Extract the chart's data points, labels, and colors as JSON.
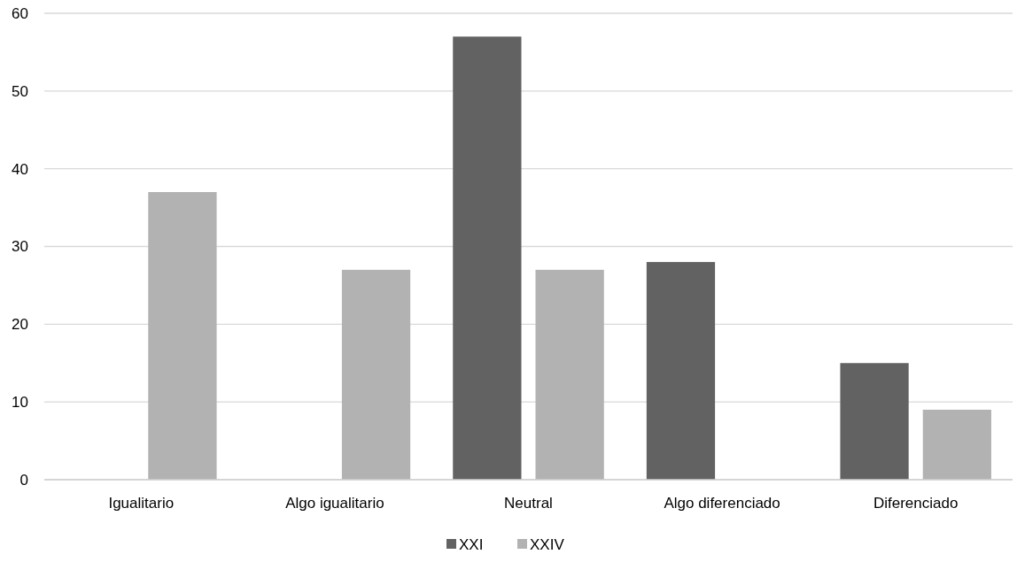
{
  "chart_data": {
    "type": "bar",
    "categories": [
      "Igualitario",
      "Algo igualitario",
      "Neutral",
      "Algo diferenciado",
      "Diferenciado"
    ],
    "series": [
      {
        "name": "XXI",
        "color": "#626262",
        "values": [
          0,
          0,
          57,
          28,
          15
        ]
      },
      {
        "name": "XXIV",
        "color": "#b2b2b2",
        "values": [
          37,
          27,
          27,
          0,
          9
        ]
      }
    ],
    "ylim": [
      0,
      60
    ],
    "yticks": [
      0,
      10,
      20,
      30,
      40,
      50,
      60
    ],
    "grid": "y",
    "legend": "bottom"
  }
}
